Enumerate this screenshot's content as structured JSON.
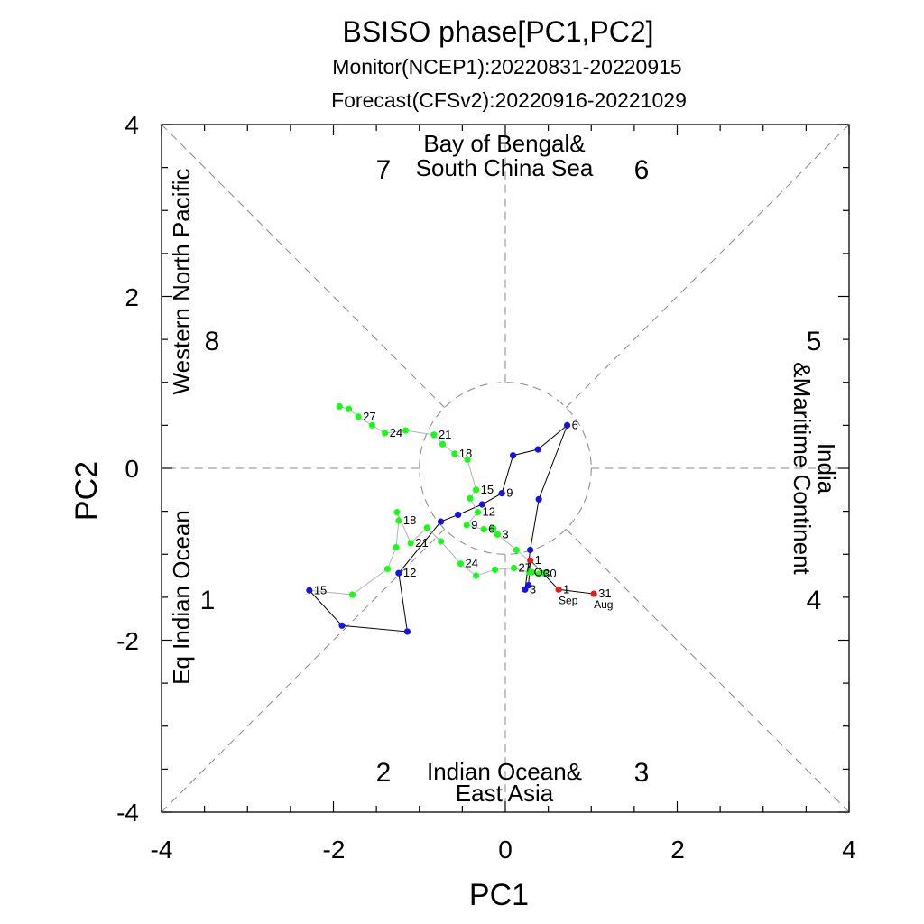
{
  "chart_data": {
    "type": "scatter",
    "title": "BSISO phase[PC1,PC2]",
    "subtitles": [
      "Monitor(NCEP1):20220831-20220915",
      "Forecast(CFSv2):20220916-20221029"
    ],
    "xlabel": "PC1",
    "ylabel": "PC2",
    "xlim": [
      -4,
      4
    ],
    "ylim": [
      -4,
      4
    ],
    "xticks": [
      "-4",
      "-2",
      "0",
      "2",
      "4"
    ],
    "yticks": [
      "4",
      "2",
      "0",
      "-2",
      "-4"
    ],
    "regions": {
      "top_line1": "Bay of Bengal&",
      "top_line2": "South China Sea",
      "bottom_line1": "Indian Ocean&",
      "bottom_line2": "East Asia",
      "left_top": "Western North Pacific",
      "left_bottom": "Eq Indian Ocean",
      "right_line1": "India",
      "right_line2": "&Maritime Continent"
    },
    "phases": [
      "1",
      "2",
      "3",
      "4",
      "5",
      "6",
      "7",
      "8"
    ],
    "colors": {
      "august": "#e8191b",
      "september": "#1414e6",
      "october": "#14ff14",
      "line_main": "#000000",
      "line_october": "#b4b4b4",
      "dashed": "#888888"
    },
    "series": [
      {
        "month": "Aug/Sep (monitor)",
        "color": "#e8191b",
        "points": [
          {
            "x": 1.03,
            "y": -1.46,
            "label": "31"
          },
          {
            "x": 0.62,
            "y": -1.41,
            "label": "1"
          },
          {
            "x": 0.29,
            "y": -1.07,
            "label": "1"
          }
        ]
      },
      {
        "month": "Sep (forecast)",
        "color": "#1414e6",
        "points": [
          {
            "x": 0.27,
            "y": -1.36,
            "label": ""
          },
          {
            "x": 0.23,
            "y": -1.41,
            "label": "3"
          },
          {
            "x": 0.29,
            "y": -0.95,
            "label": ""
          },
          {
            "x": 0.39,
            "y": -0.36,
            "label": ""
          },
          {
            "x": 0.72,
            "y": 0.5,
            "label": "6"
          },
          {
            "x": 0.38,
            "y": 0.22,
            "label": ""
          },
          {
            "x": 0.09,
            "y": 0.15,
            "label": ""
          },
          {
            "x": -0.04,
            "y": -0.29,
            "label": "9"
          },
          {
            "x": -0.27,
            "y": -0.42,
            "label": ""
          },
          {
            "x": -0.55,
            "y": -0.54,
            "label": ""
          },
          {
            "x": -0.75,
            "y": -0.62,
            "label": ""
          },
          {
            "x": -1.24,
            "y": -1.22,
            "label": "12"
          },
          {
            "x": -1.14,
            "y": -1.9,
            "label": ""
          },
          {
            "x": -1.9,
            "y": -1.83,
            "label": ""
          },
          {
            "x": -2.28,
            "y": -1.42,
            "label": "15"
          }
        ]
      },
      {
        "month": "Oct (forecast)",
        "color": "#14ff14",
        "points": [
          {
            "x": -1.78,
            "y": -1.47,
            "label": ""
          },
          {
            "x": -1.37,
            "y": -1.17,
            "label": ""
          },
          {
            "x": -1.27,
            "y": -0.92,
            "label": ""
          },
          {
            "x": -1.24,
            "y": -0.61,
            "label": "18"
          },
          {
            "x": -1.26,
            "y": -0.51,
            "label": ""
          },
          {
            "x": -1.1,
            "y": -0.87,
            "label": "21"
          },
          {
            "x": -0.91,
            "y": -0.69,
            "label": ""
          },
          {
            "x": -0.75,
            "y": -0.85,
            "label": ""
          },
          {
            "x": -0.52,
            "y": -1.11,
            "label": "24"
          },
          {
            "x": -0.34,
            "y": -1.25,
            "label": ""
          },
          {
            "x": -0.12,
            "y": -1.18,
            "label": ""
          },
          {
            "x": 0.1,
            "y": -1.16,
            "label": "27"
          },
          {
            "x": 0.28,
            "y": -1.21,
            "label": "Oc"
          },
          {
            "x": 0.31,
            "y": -1.21,
            "label": ""
          },
          {
            "x": 0.39,
            "y": -1.23,
            "label": "30"
          },
          {
            "x": 0.45,
            "y": -1.22,
            "label": ""
          },
          {
            "x": 0.13,
            "y": -0.95,
            "label": ""
          },
          {
            "x": -0.09,
            "y": -0.77,
            "label": "3"
          },
          {
            "x": -0.14,
            "y": -0.7,
            "label": ""
          },
          {
            "x": -0.25,
            "y": -0.71,
            "label": "6"
          },
          {
            "x": -0.45,
            "y": -0.66,
            "label": "9"
          },
          {
            "x": -0.32,
            "y": -0.51,
            "label": "12"
          },
          {
            "x": -0.41,
            "y": -0.35,
            "label": ""
          },
          {
            "x": -0.34,
            "y": -0.25,
            "label": "15"
          },
          {
            "x": -0.44,
            "y": 0.1,
            "label": ""
          },
          {
            "x": -0.59,
            "y": 0.17,
            "label": "18"
          },
          {
            "x": -0.73,
            "y": 0.28,
            "label": ""
          },
          {
            "x": -0.83,
            "y": 0.39,
            "label": "21"
          },
          {
            "x": -1.16,
            "y": 0.44,
            "label": ""
          },
          {
            "x": -1.4,
            "y": 0.41,
            "label": "24"
          },
          {
            "x": -1.55,
            "y": 0.5,
            "label": ""
          },
          {
            "x": -1.71,
            "y": 0.6,
            "label": "27"
          },
          {
            "x": -1.82,
            "y": 0.69,
            "label": ""
          },
          {
            "x": -1.93,
            "y": 0.72,
            "label": ""
          }
        ]
      }
    ],
    "month_labels": [
      {
        "x": 1.03,
        "y": -1.46,
        "text": "Aug"
      },
      {
        "x": 0.62,
        "y": -1.41,
        "text": "Sep"
      }
    ]
  }
}
